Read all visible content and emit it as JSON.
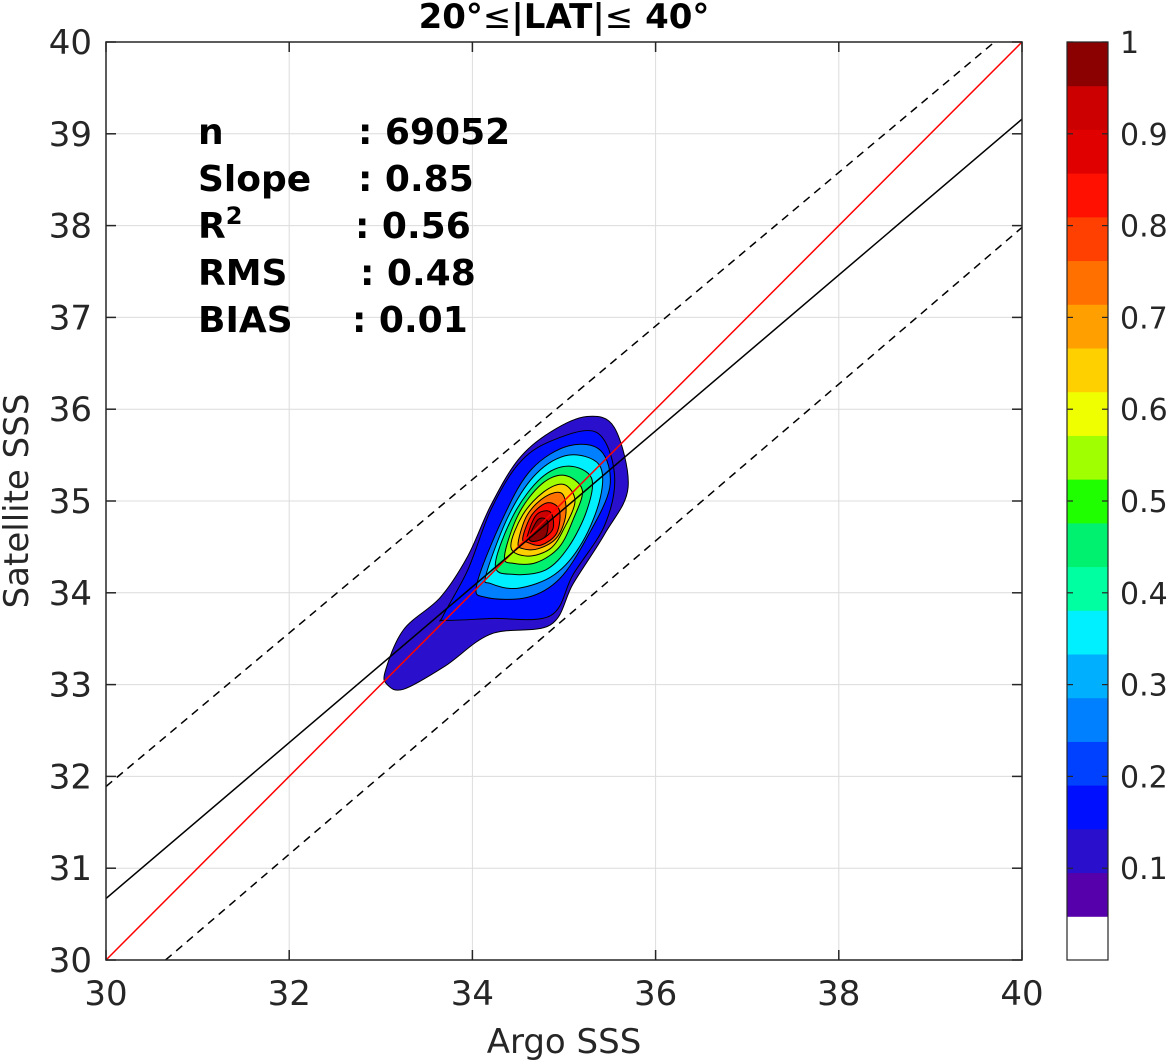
{
  "chart_data": {
    "type": "contour",
    "title_parts": [
      "20°",
      "≤",
      "|LAT|",
      "≤",
      " 40°"
    ],
    "xlabel": "Argo SSS",
    "ylabel": "Satellite SSS",
    "xlim": [
      30,
      40
    ],
    "ylim": [
      30,
      40
    ],
    "xticks": [
      30,
      32,
      34,
      36,
      38,
      40
    ],
    "yticks": [
      30,
      31,
      32,
      33,
      34,
      35,
      36,
      37,
      38,
      39,
      40
    ],
    "grid": true,
    "stats": [
      {
        "label": "n",
        "sup": "",
        "value": ": 69052"
      },
      {
        "label": "Slope",
        "sup": "",
        "value": ": 0.85"
      },
      {
        "label": "R",
        "sup": "2",
        "value": ": 0.56"
      },
      {
        "label": "RMS",
        "sup": "",
        "value": ": 0.48"
      },
      {
        "label": "BIAS",
        "sup": "",
        "value": ": 0.01"
      }
    ],
    "lines": {
      "one_to_one": {
        "color": "#ff0000",
        "points": [
          [
            30,
            30
          ],
          [
            40,
            40
          ]
        ]
      },
      "fit": {
        "color": "#000000",
        "points": [
          [
            30,
            30.67
          ],
          [
            40,
            39.16
          ]
        ]
      },
      "upper_bound": {
        "color": "#000000",
        "dashed": true,
        "points": [
          [
            30,
            31.89
          ],
          [
            39.7,
            40
          ]
        ]
      },
      "lower_bound": {
        "color": "#000000",
        "dashed": true,
        "points": [
          [
            30.65,
            30
          ],
          [
            40,
            37.98
          ]
        ]
      }
    },
    "density_center": [
      34.75,
      34.72
    ],
    "density_levels": [
      {
        "level": 0.05,
        "points": [
          [
            33.05,
            33.15
          ],
          [
            33.25,
            33.6
          ],
          [
            33.65,
            33.95
          ],
          [
            33.95,
            34.4
          ],
          [
            34.2,
            34.95
          ],
          [
            34.5,
            35.45
          ],
          [
            34.85,
            35.75
          ],
          [
            35.25,
            35.92
          ],
          [
            35.55,
            35.8
          ],
          [
            35.7,
            35.15
          ],
          [
            35.45,
            34.65
          ],
          [
            35.1,
            34.1
          ],
          [
            34.85,
            33.65
          ],
          [
            34.2,
            33.55
          ],
          [
            33.7,
            33.2
          ],
          [
            33.25,
            32.95
          ],
          [
            33.07,
            33.0
          ]
        ]
      },
      {
        "level": 0.1,
        "points": [
          [
            33.68,
            33.75
          ],
          [
            33.95,
            34.25
          ],
          [
            34.2,
            34.9
          ],
          [
            34.5,
            35.4
          ],
          [
            34.85,
            35.65
          ],
          [
            35.35,
            35.75
          ],
          [
            35.55,
            35.3
          ],
          [
            35.45,
            34.75
          ],
          [
            35.1,
            34.2
          ],
          [
            34.85,
            33.75
          ],
          [
            34.2,
            33.72
          ],
          [
            33.7,
            33.7
          ]
        ]
      },
      {
        "level": 0.2,
        "points": [
          [
            34.05,
            34.1
          ],
          [
            34.35,
            34.85
          ],
          [
            34.65,
            35.35
          ],
          [
            35.05,
            35.6
          ],
          [
            35.4,
            35.55
          ],
          [
            35.5,
            35.15
          ],
          [
            35.25,
            34.6
          ],
          [
            34.95,
            34.15
          ],
          [
            34.6,
            33.95
          ],
          [
            34.15,
            33.95
          ]
        ]
      },
      {
        "level": 0.3,
        "points": [
          [
            34.15,
            34.2
          ],
          [
            34.4,
            34.85
          ],
          [
            34.7,
            35.3
          ],
          [
            35.05,
            35.5
          ],
          [
            35.38,
            35.4
          ],
          [
            35.4,
            35.05
          ],
          [
            35.2,
            34.55
          ],
          [
            34.9,
            34.2
          ],
          [
            34.5,
            34.05
          ],
          [
            34.2,
            34.1
          ]
        ]
      },
      {
        "level": 0.4,
        "points": [
          [
            34.25,
            34.3
          ],
          [
            34.45,
            34.85
          ],
          [
            34.75,
            35.25
          ],
          [
            35.05,
            35.38
          ],
          [
            35.3,
            35.25
          ],
          [
            35.25,
            34.9
          ],
          [
            35.05,
            34.5
          ],
          [
            34.8,
            34.25
          ],
          [
            34.45,
            34.2
          ]
        ]
      },
      {
        "level": 0.5,
        "points": [
          [
            34.35,
            34.4
          ],
          [
            34.5,
            34.85
          ],
          [
            34.75,
            35.18
          ],
          [
            35.0,
            35.28
          ],
          [
            35.2,
            35.12
          ],
          [
            35.1,
            34.8
          ],
          [
            34.95,
            34.5
          ],
          [
            34.7,
            34.33
          ],
          [
            34.45,
            34.32
          ]
        ]
      },
      {
        "level": 0.6,
        "points": [
          [
            34.42,
            34.5
          ],
          [
            34.55,
            34.85
          ],
          [
            34.78,
            35.1
          ],
          [
            35.0,
            35.18
          ],
          [
            35.12,
            35.0
          ],
          [
            35.0,
            34.7
          ],
          [
            34.85,
            34.48
          ],
          [
            34.6,
            34.4
          ]
        ]
      },
      {
        "level": 0.7,
        "points": [
          [
            34.5,
            34.55
          ],
          [
            34.6,
            34.85
          ],
          [
            34.8,
            35.05
          ],
          [
            34.98,
            35.08
          ],
          [
            35.02,
            34.85
          ],
          [
            34.92,
            34.6
          ],
          [
            34.72,
            34.48
          ],
          [
            34.55,
            34.48
          ]
        ]
      },
      {
        "level": 0.8,
        "points": [
          [
            34.55,
            34.6
          ],
          [
            34.65,
            34.85
          ],
          [
            34.82,
            34.98
          ],
          [
            34.95,
            34.9
          ],
          [
            34.92,
            34.65
          ],
          [
            34.75,
            34.52
          ],
          [
            34.6,
            34.55
          ]
        ]
      },
      {
        "level": 0.9,
        "points": [
          [
            34.6,
            34.62
          ],
          [
            34.7,
            34.85
          ],
          [
            34.85,
            34.88
          ],
          [
            34.88,
            34.7
          ],
          [
            34.75,
            34.58
          ],
          [
            34.62,
            34.58
          ]
        ]
      },
      {
        "level": 0.95,
        "points": [
          [
            34.62,
            34.6
          ],
          [
            34.72,
            34.8
          ],
          [
            34.82,
            34.78
          ],
          [
            34.8,
            34.62
          ],
          [
            34.68,
            34.56
          ]
        ]
      }
    ],
    "colorbar": {
      "ticks": [
        "0.1",
        "0.2",
        "0.3",
        "0.4",
        "0.5",
        "0.6",
        "0.7",
        "0.8",
        "0.9",
        "1"
      ],
      "tick_values": [
        0.1,
        0.2,
        0.3,
        0.4,
        0.5,
        0.6,
        0.7,
        0.8,
        0.9,
        1.0
      ],
      "colors": [
        "#ffffff",
        "#5500aa",
        "#2a10cc",
        "#0010ff",
        "#0040ff",
        "#0080ff",
        "#00b0ff",
        "#00f0ff",
        "#00ffa0",
        "#00f070",
        "#20ff00",
        "#a0ff00",
        "#f0ff00",
        "#ffd000",
        "#ffa000",
        "#ff7000",
        "#ff4000",
        "#ff1000",
        "#e00000",
        "#cc0000",
        "#8b0000"
      ]
    }
  }
}
